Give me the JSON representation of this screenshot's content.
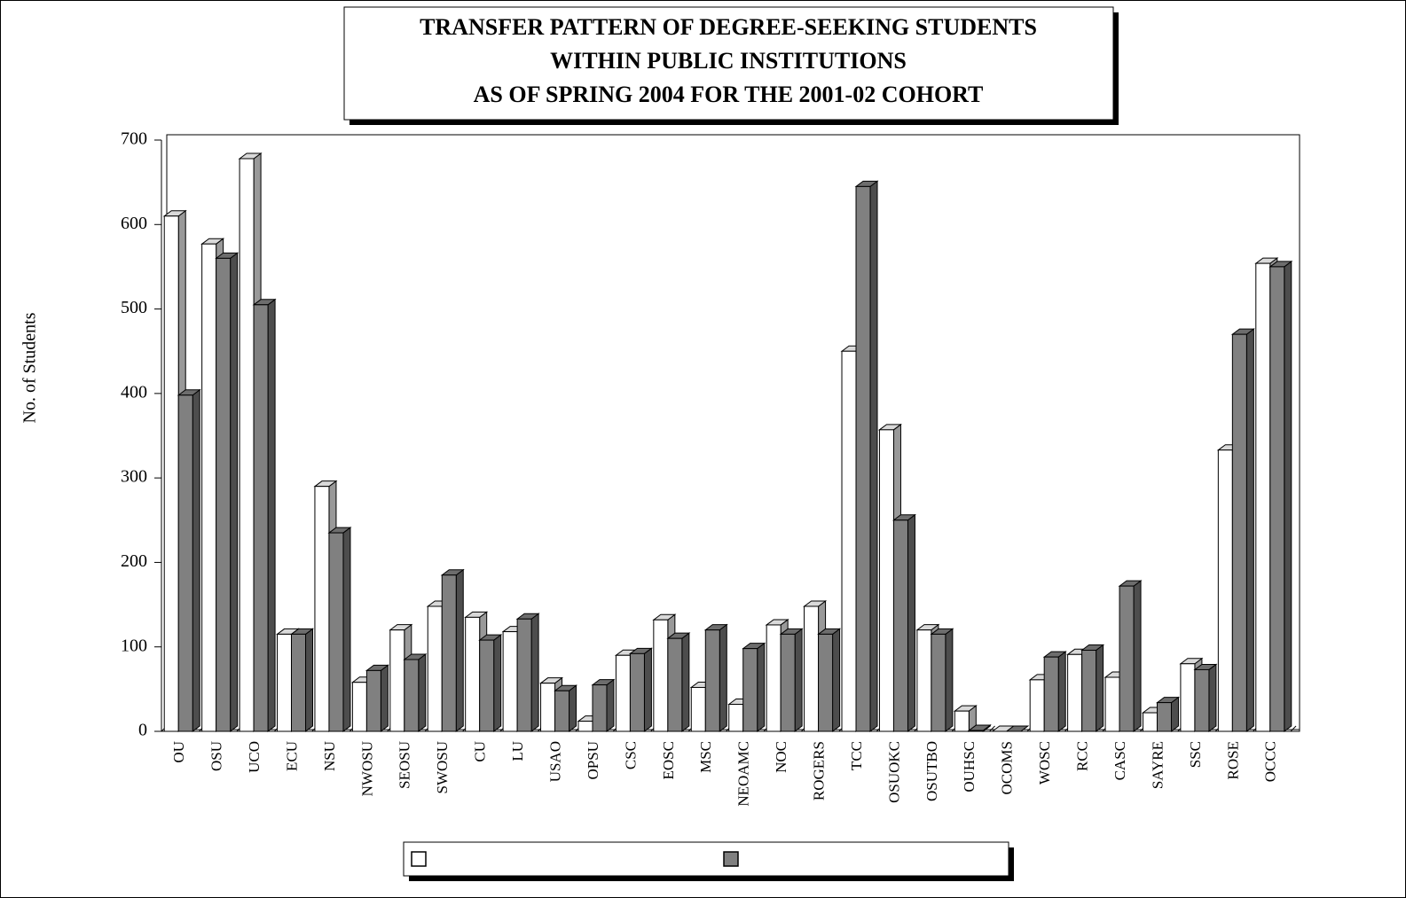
{
  "chart_data": {
    "type": "bar3d",
    "title": [
      "TRANSFER PATTERN OF DEGREE-SEEKING STUDENTS",
      "WITHIN PUBLIC INSTITUTIONS",
      "AS OF SPRING 2004 FOR THE 2001-02 COHORT"
    ],
    "y_label": "No. of Students",
    "categories": [
      "OU",
      "OSU",
      "UCO",
      "ECU",
      "NSU",
      "NWOSU",
      "SEOSU",
      "SWOSU",
      "CU",
      "LU",
      "USAO",
      "OPSU",
      "CSC",
      "EOSC",
      "MSC",
      "NEOAMC",
      "NOC",
      "ROGERS",
      "TCC",
      "OSUOKC",
      "OSUTBO",
      "OUHSC",
      "OCOMS",
      "WOSC",
      "RCC",
      "CASC",
      "SAYRE",
      "SSC",
      "ROSE",
      "OCCC"
    ],
    "series": [
      {
        "color": "#ffffff",
        "values": [
          610,
          577,
          678,
          115,
          290,
          58,
          120,
          148,
          135,
          118,
          57,
          12,
          90,
          132,
          52,
          32,
          126,
          148,
          450,
          357,
          120,
          24,
          0,
          61,
          91,
          64,
          22,
          80,
          333,
          554
        ]
      },
      {
        "color": "#808080",
        "values": [
          398,
          560,
          505,
          115,
          235,
          72,
          85,
          185,
          108,
          133,
          48,
          55,
          92,
          110,
          120,
          98,
          115,
          115,
          645,
          250,
          115,
          1,
          0,
          88,
          96,
          172,
          34,
          73,
          470,
          550
        ]
      }
    ],
    "ylim": [
      0,
      700
    ],
    "yticks": [
      0,
      100,
      200,
      300,
      400,
      500,
      600,
      700
    ]
  }
}
